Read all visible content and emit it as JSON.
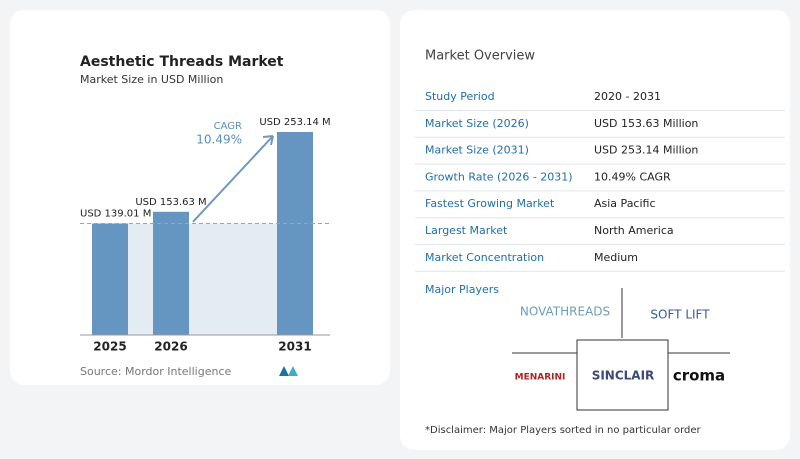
{
  "chart_data": {
    "type": "bar",
    "title": "Aesthetic Threads Market",
    "subtitle": "Market Size in USD Million",
    "categories": [
      "2025",
      "2026",
      "2031"
    ],
    "values": [
      139.01,
      153.63,
      253.14
    ],
    "value_labels": [
      "USD 139.01 M",
      "USD 153.63 M",
      "USD 253.14 M"
    ],
    "color": "#6596c2",
    "annotation": {
      "label": "CAGR",
      "text": "10.49%"
    },
    "source": "Source: Mordor Intelligence"
  },
  "overview": {
    "title": "Market Overview",
    "rows": [
      [
        "Study Period",
        "2020 - 2031"
      ],
      [
        "Market Size (2026)",
        "USD 153.63 Million"
      ],
      [
        "Market Size (2031)",
        "USD 253.14 Million"
      ],
      [
        "Growth Rate (2026 - 2031)",
        "10.49% CAGR"
      ],
      [
        "Fastest Growing Market",
        "Asia Pacific"
      ],
      [
        "Largest Market",
        "North America"
      ],
      [
        "Market Concentration",
        "Medium"
      ]
    ]
  },
  "major_players": {
    "title": "Major Players",
    "players": [
      "NOVATHREADS",
      "SOFT LIFT",
      "MENARINI",
      "SINCLAIR",
      "croma"
    ]
  },
  "disclaimer": "*Disclaimer: Major Players sorted in no particular order"
}
